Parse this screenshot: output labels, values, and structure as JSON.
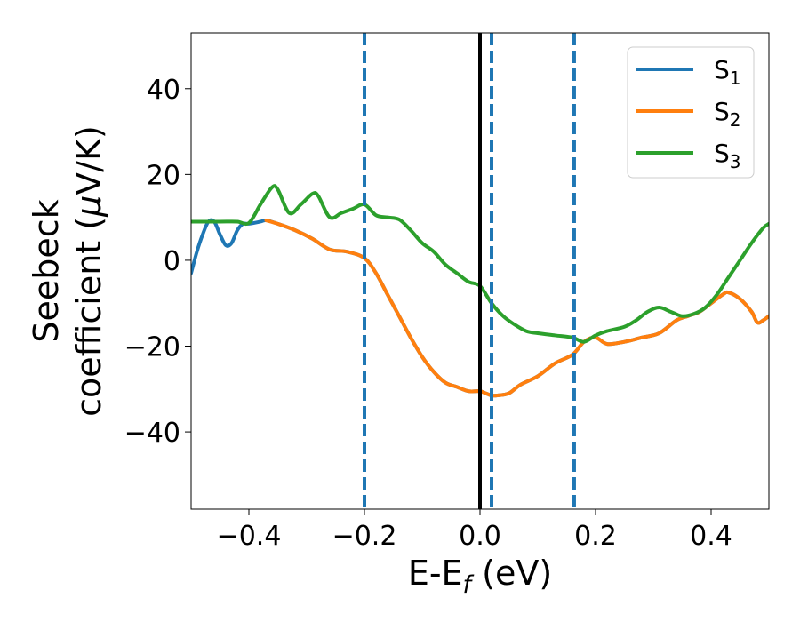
{
  "chart_data": {
    "type": "line",
    "xlabel": "E-E",
    "xlabel_sub": "f",
    "xlabel_unit": " (eV)",
    "ylabel_line1": "Seebeck",
    "ylabel_line2": "coefficient  (",
    "ylabel_mu": "μ",
    "ylabel_unit": "V/K)",
    "xlim": [
      -0.5,
      0.5
    ],
    "ylim": [
      -58,
      53
    ],
    "xticks": [
      -0.4,
      -0.2,
      0.0,
      0.2,
      0.4
    ],
    "xtick_labels": [
      "−0.4",
      "−0.2",
      "0.0",
      "0.2",
      "0.4"
    ],
    "yticks": [
      -40,
      -20,
      0,
      20,
      40
    ],
    "ytick_labels": [
      "−40",
      "−20",
      "0",
      "20",
      "40"
    ],
    "grid": false,
    "legend_position": "top-right",
    "fermi_line": {
      "x": 0.0,
      "color": "#000000"
    },
    "vlines": [
      {
        "x": -0.2,
        "color": "#1f77b4",
        "style": "dashed"
      },
      {
        "x": 0.02,
        "color": "#1f77b4",
        "style": "dashed"
      },
      {
        "x": 0.163,
        "color": "#1f77b4",
        "style": "dashed"
      }
    ],
    "series": [
      {
        "name": "S",
        "sub": "1",
        "color": "#1f77b4",
        "x": [
          -0.5,
          -0.49,
          -0.48,
          -0.47,
          -0.46,
          -0.45,
          -0.44,
          -0.43,
          -0.42,
          -0.41,
          -0.4,
          -0.38,
          -0.37,
          -0.35,
          -0.32,
          -0.29,
          -0.26,
          -0.23,
          -0.2,
          -0.18,
          -0.16,
          -0.14,
          -0.12,
          -0.1,
          -0.08,
          -0.06,
          -0.04,
          -0.02,
          0.0,
          0.01,
          0.02,
          0.03,
          0.05,
          0.07,
          0.1,
          0.13,
          0.16,
          0.18,
          0.2,
          0.22,
          0.25,
          0.28,
          0.31,
          0.34,
          0.36,
          0.38,
          0.4,
          0.42,
          0.43,
          0.45,
          0.47,
          0.48,
          0.49,
          0.5
        ],
        "y": [
          -3,
          2,
          6,
          9,
          9,
          6,
          3.5,
          4,
          7,
          8.5,
          8.5,
          9,
          9.3,
          8.5,
          7,
          5,
          2.5,
          2,
          0.5,
          -3,
          -8,
          -13,
          -18,
          -22.5,
          -26,
          -28.5,
          -29.5,
          -30.5,
          -30.5,
          -31,
          -31.5,
          -31.5,
          -31,
          -29,
          -27,
          -24,
          -22,
          -19,
          -18,
          -19.5,
          -19,
          -18,
          -17,
          -14,
          -13,
          -12,
          -10,
          -8,
          -7.5,
          -9,
          -12,
          -14.5,
          -14,
          -13
        ]
      },
      {
        "name": "S",
        "sub": "2",
        "color": "#ff7f0e",
        "x": [
          -0.37,
          -0.35,
          -0.32,
          -0.29,
          -0.26,
          -0.23,
          -0.2,
          -0.18,
          -0.16,
          -0.14,
          -0.12,
          -0.1,
          -0.08,
          -0.06,
          -0.04,
          -0.02,
          0.0,
          0.01,
          0.02,
          0.03,
          0.05,
          0.07,
          0.1,
          0.13,
          0.16,
          0.18,
          0.2,
          0.22,
          0.25,
          0.28,
          0.31,
          0.34,
          0.36,
          0.38,
          0.4,
          0.42,
          0.43,
          0.45,
          0.47,
          0.48,
          0.49,
          0.5
        ],
        "y": [
          9.3,
          8.5,
          7,
          5,
          2.5,
          2,
          0.5,
          -3,
          -8,
          -13,
          -18,
          -22.5,
          -26,
          -28.5,
          -29.5,
          -30.5,
          -30.5,
          -31,
          -31.5,
          -31.5,
          -31,
          -29,
          -27,
          -24,
          -22,
          -19,
          -18,
          -19.5,
          -19,
          -18,
          -17,
          -14,
          -13,
          -12,
          -10,
          -8,
          -7.5,
          -9,
          -12,
          -14.5,
          -14,
          -13
        ]
      },
      {
        "name": "S",
        "sub": "3",
        "color": "#2ca02c",
        "x": [
          -0.5,
          -0.45,
          -0.42,
          -0.4,
          -0.38,
          -0.36,
          -0.35,
          -0.33,
          -0.31,
          -0.29,
          -0.28,
          -0.26,
          -0.24,
          -0.22,
          -0.2,
          -0.18,
          -0.16,
          -0.14,
          -0.12,
          -0.1,
          -0.08,
          -0.06,
          -0.04,
          -0.02,
          0.0,
          0.02,
          0.04,
          0.06,
          0.08,
          0.1,
          0.13,
          0.16,
          0.18,
          0.2,
          0.22,
          0.25,
          0.27,
          0.29,
          0.31,
          0.33,
          0.35,
          0.37,
          0.39,
          0.41,
          0.43,
          0.45,
          0.47,
          0.49,
          0.5
        ],
        "y": [
          9,
          9,
          9,
          8.7,
          13,
          17,
          16.5,
          11,
          13,
          15.5,
          15,
          10,
          11,
          12,
          13,
          10.5,
          10,
          9.5,
          7,
          4,
          2,
          -1,
          -3,
          -5,
          -6,
          -10,
          -13,
          -15,
          -16.5,
          -17,
          -17.5,
          -18,
          -19,
          -17.5,
          -16.5,
          -15.5,
          -14,
          -12,
          -11,
          -12,
          -13,
          -12.5,
          -11,
          -8,
          -4,
          0,
          4,
          7.5,
          8.5
        ]
      }
    ]
  }
}
